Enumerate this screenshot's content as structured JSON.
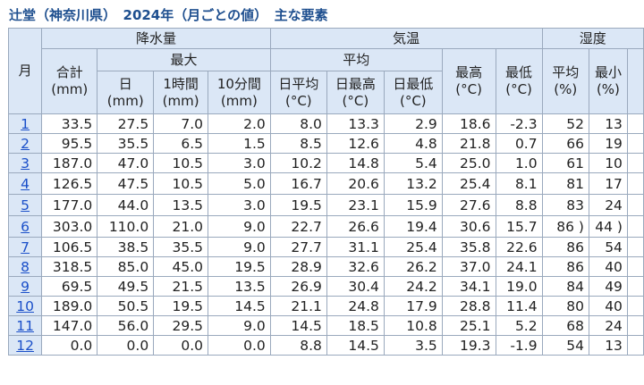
{
  "title": "辻堂（神奈川県）　2024年（月ごとの値）　主な要素",
  "groups": {
    "month": "月",
    "precip": "降水量",
    "temp": "気温",
    "humidity": "湿度",
    "max": "最大",
    "avg": "平均"
  },
  "columns": {
    "precip_total": [
      "合計",
      "(mm)"
    ],
    "precip_day": [
      "日",
      "(mm)"
    ],
    "precip_1h": [
      "1時間",
      "(mm)"
    ],
    "precip_10m": [
      "10分間",
      "(mm)"
    ],
    "temp_day_mean": [
      "日平均",
      "(°C)"
    ],
    "temp_day_max": [
      "日最高",
      "(°C)"
    ],
    "temp_day_min": [
      "日最低",
      "(°C)"
    ],
    "temp_max": [
      "最高",
      "(°C)"
    ],
    "temp_min": [
      "最低",
      "(°C)"
    ],
    "hum_mean": [
      "平均",
      "(%)"
    ],
    "hum_min": [
      "最小",
      "(%)"
    ]
  },
  "rows": [
    [
      "1",
      "33.5",
      "27.5",
      "7.0",
      "2.0",
      "8.0",
      "13.3",
      "2.9",
      "18.6",
      "-2.3",
      "52",
      "13"
    ],
    [
      "2",
      "95.5",
      "35.5",
      "6.5",
      "1.5",
      "8.5",
      "12.6",
      "4.8",
      "21.8",
      "0.7",
      "66",
      "19"
    ],
    [
      "3",
      "187.0",
      "47.0",
      "10.5",
      "3.0",
      "10.2",
      "14.8",
      "5.4",
      "25.0",
      "1.0",
      "61",
      "10"
    ],
    [
      "4",
      "126.5",
      "47.5",
      "10.5",
      "5.0",
      "16.7",
      "20.6",
      "13.2",
      "25.4",
      "8.1",
      "81",
      "17"
    ],
    [
      "5",
      "177.0",
      "44.0",
      "13.5",
      "3.0",
      "19.5",
      "23.1",
      "15.9",
      "27.6",
      "8.8",
      "83",
      "24"
    ],
    [
      "6",
      "303.0",
      "110.0",
      "21.0",
      "9.0",
      "22.7",
      "26.6",
      "19.4",
      "30.6",
      "15.7",
      "86 )",
      "44 )"
    ],
    [
      "7",
      "106.5",
      "38.5",
      "35.5",
      "9.0",
      "27.7",
      "31.1",
      "25.4",
      "35.8",
      "22.6",
      "86",
      "54"
    ],
    [
      "8",
      "318.5",
      "85.0",
      "45.0",
      "19.5",
      "28.9",
      "32.6",
      "26.2",
      "37.0",
      "24.1",
      "86",
      "40"
    ],
    [
      "9",
      "69.5",
      "49.5",
      "21.5",
      "13.5",
      "26.9",
      "30.4",
      "24.2",
      "34.1",
      "19.0",
      "84",
      "49"
    ],
    [
      "10",
      "189.0",
      "50.5",
      "19.5",
      "14.5",
      "21.1",
      "24.8",
      "17.9",
      "28.8",
      "11.4",
      "80",
      "40"
    ],
    [
      "11",
      "147.0",
      "56.0",
      "29.5",
      "9.0",
      "14.5",
      "18.5",
      "10.8",
      "25.1",
      "5.2",
      "68",
      "24"
    ],
    [
      "12",
      "0.0",
      "0.0",
      "0.0",
      "0.0",
      "8.8",
      "14.5",
      "3.5",
      "19.3",
      "-1.9",
      "54",
      "13"
    ]
  ]
}
